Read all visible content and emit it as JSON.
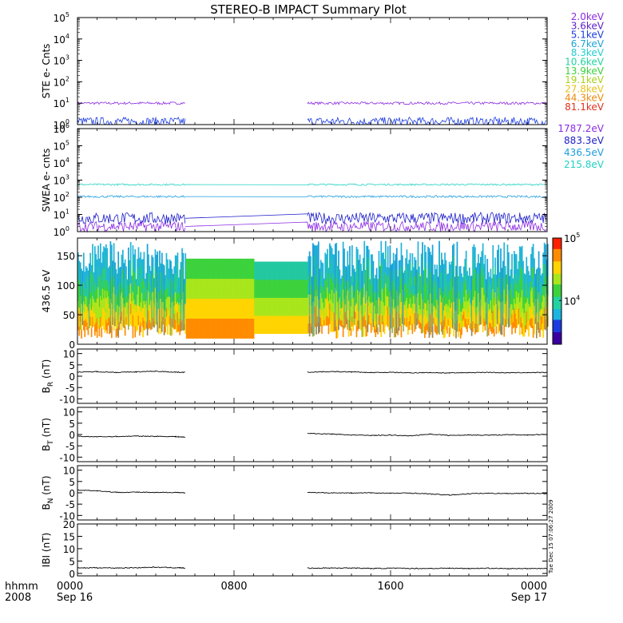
{
  "title": "STEREO-B IMPACT Summary Plot",
  "time_axis": {
    "row_label_top": "hhmm",
    "row_label_bottom": "2008",
    "ticks": [
      {
        "hours": 0,
        "label": "0000",
        "date": "Sep 16"
      },
      {
        "hours": 8,
        "label": "0800",
        "date": ""
      },
      {
        "hours": 16,
        "label": "1600",
        "date": ""
      },
      {
        "hours": 24,
        "label": "0000",
        "date": "Sep 17"
      }
    ],
    "range_hours": [
      0,
      24
    ]
  },
  "side_stamp": "Tue Dec 15 07:06:27 2009",
  "data_gap_hours": [
    5.5,
    11.75
  ],
  "chart_data": [
    {
      "panel": "ste",
      "type": "line",
      "ylabel": "STE e- Cnts",
      "yscale": "log",
      "ylim": [
        1,
        100000
      ],
      "yticks": [
        {
          "v": 1,
          "label": "10",
          "exp": "0"
        },
        {
          "v": 10,
          "label": "10",
          "exp": "1"
        },
        {
          "v": 100,
          "label": "10",
          "exp": "2"
        },
        {
          "v": 1000,
          "label": "10",
          "exp": "3"
        },
        {
          "v": 10000,
          "label": "10",
          "exp": "4"
        },
        {
          "v": 100000,
          "label": "10",
          "exp": "5"
        }
      ],
      "legend": [
        {
          "name": "2.0keV",
          "color": "#8b2be2"
        },
        {
          "name": "3.6keV",
          "color": "#5a1fc8"
        },
        {
          "name": "5.1keV",
          "color": "#1c3de0"
        },
        {
          "name": "6.7keV",
          "color": "#1ca4d8"
        },
        {
          "name": "8.3keV",
          "color": "#22cfd0"
        },
        {
          "name": "10.6keV",
          "color": "#22d4a0"
        },
        {
          "name": "13.9keV",
          "color": "#3bd23b"
        },
        {
          "name": "19.1keV",
          "color": "#a8d21c"
        },
        {
          "name": "27.8keV",
          "color": "#e8c21c"
        },
        {
          "name": "44.3keV",
          "color": "#ee8a10"
        },
        {
          "name": "81.1keV",
          "color": "#e0301c"
        }
      ],
      "series": [
        {
          "color": "#8b2be2",
          "level": 10,
          "spread": 1.15
        },
        {
          "color": "#1c3de0",
          "level": 1.4,
          "spread": 1.6
        }
      ]
    },
    {
      "panel": "swea",
      "type": "line",
      "ylabel": "SWEA e- cnts",
      "yscale": "log",
      "ylim": [
        1,
        1000000
      ],
      "yticks": [
        {
          "v": 1,
          "label": "10",
          "exp": "0"
        },
        {
          "v": 10,
          "label": "10",
          "exp": "1"
        },
        {
          "v": 100,
          "label": "10",
          "exp": "2"
        },
        {
          "v": 1000,
          "label": "10",
          "exp": "3"
        },
        {
          "v": 10000,
          "label": "10",
          "exp": "4"
        },
        {
          "v": 100000,
          "label": "10",
          "exp": "5"
        },
        {
          "v": 1000000,
          "label": "10",
          "exp": "6"
        }
      ],
      "legend": [
        {
          "name": "1787.2eV",
          "color": "#8b2be2"
        },
        {
          "name": "883.3eV",
          "color": "#1c1cc8"
        },
        {
          "name": "436.5eV",
          "color": "#1c9ce0"
        },
        {
          "name": "215.8eV",
          "color": "#22d2c0"
        }
      ],
      "series": [
        {
          "name": "215.8eV",
          "color": "#22d2c0",
          "level": 550,
          "spread": 1.12
        },
        {
          "name": "436.5eV",
          "color": "#1c9ce0",
          "level": 110,
          "spread": 1.15
        },
        {
          "name": "883.3eV",
          "color": "#1c1cc8",
          "level": 6,
          "spread": 2.2
        },
        {
          "name": "1787.2eV",
          "color": "#8b2be2",
          "level": 2,
          "spread": 2.0
        }
      ]
    },
    {
      "panel": "spectrogram",
      "type": "heatmap",
      "ylabel": "436.5 eV",
      "ylim": [
        0,
        180
      ],
      "yticks": [
        0,
        50,
        100,
        150
      ],
      "colorbar": {
        "range": [
          2000,
          100000
        ],
        "scale": "log",
        "ticks": [
          {
            "v": 10000,
            "label": "10",
            "exp": "4"
          },
          {
            "v": 100000,
            "label": "10",
            "exp": "5"
          }
        ]
      }
    },
    {
      "panel": "br",
      "type": "line",
      "ylabel": "B",
      "ysub": "R",
      "yunit": "(nT)",
      "ylim": [
        -12,
        12
      ],
      "yticks": [
        -10,
        -5,
        0,
        5,
        10
      ],
      "segments": [
        {
          "x": [
            0,
            1,
            2,
            3,
            4,
            5,
            5.5
          ],
          "y": [
            1.8,
            2.0,
            1.7,
            1.9,
            2.2,
            1.8,
            1.7
          ]
        },
        {
          "x": [
            11.75,
            13,
            14,
            15,
            16,
            17,
            18,
            19,
            20,
            21,
            22,
            23,
            24
          ],
          "y": [
            1.8,
            2.0,
            1.9,
            1.6,
            1.7,
            1.5,
            1.6,
            1.4,
            1.6,
            1.7,
            1.5,
            1.6,
            1.6
          ]
        }
      ]
    },
    {
      "panel": "bt",
      "type": "line",
      "ylabel": "B",
      "ysub": "T",
      "yunit": "(nT)",
      "ylim": [
        -12,
        12
      ],
      "yticks": [
        -10,
        -5,
        0,
        5,
        10
      ],
      "segments": [
        {
          "x": [
            0,
            1,
            2,
            3,
            4,
            5,
            5.5
          ],
          "y": [
            -0.8,
            -1.0,
            -0.9,
            -0.7,
            -0.8,
            -0.9,
            -1.2
          ]
        },
        {
          "x": [
            11.75,
            13,
            14,
            15,
            16,
            17,
            18,
            19,
            20,
            21,
            22,
            23,
            24
          ],
          "y": [
            0.5,
            0.2,
            -0.2,
            -0.4,
            -0.3,
            -0.6,
            0.2,
            -0.4,
            -0.2,
            -0.3,
            -0.1,
            -0.2,
            0.1
          ]
        }
      ]
    },
    {
      "panel": "bn",
      "type": "line",
      "ylabel": "B",
      "ysub": "N",
      "yunit": "(nT)",
      "ylim": [
        -12,
        12
      ],
      "yticks": [
        -10,
        -5,
        0,
        5,
        10
      ],
      "segments": [
        {
          "x": [
            0,
            1,
            2,
            3,
            4,
            5,
            5.5
          ],
          "y": [
            1.2,
            0.9,
            0.2,
            0.3,
            0.1,
            0.2,
            0.0
          ]
        },
        {
          "x": [
            11.75,
            13,
            14,
            15,
            16,
            17,
            18,
            19,
            20,
            21,
            22,
            23,
            24
          ],
          "y": [
            0.1,
            0.0,
            -0.1,
            0.0,
            -0.2,
            -0.1,
            -0.5,
            -1.0,
            -0.4,
            -0.2,
            -0.3,
            -0.2,
            -0.4
          ]
        }
      ]
    },
    {
      "panel": "bmag",
      "type": "line",
      "ylabel": "IBI",
      "yunit": "(nT)",
      "ylim": [
        -1,
        20
      ],
      "yticks": [
        0,
        5,
        10,
        15,
        20
      ],
      "segments": [
        {
          "x": [
            0,
            1,
            2,
            3,
            4,
            5,
            5.5
          ],
          "y": [
            2.2,
            2.3,
            2.2,
            2.3,
            2.5,
            2.3,
            2.2
          ]
        },
        {
          "x": [
            11.75,
            13,
            14,
            15,
            16,
            17,
            18,
            19,
            20,
            21,
            22,
            23,
            24
          ],
          "y": [
            2.1,
            2.2,
            2.2,
            2.0,
            2.1,
            2.0,
            2.0,
            2.1,
            2.0,
            2.1,
            1.9,
            2.0,
            2.0
          ]
        }
      ]
    }
  ]
}
